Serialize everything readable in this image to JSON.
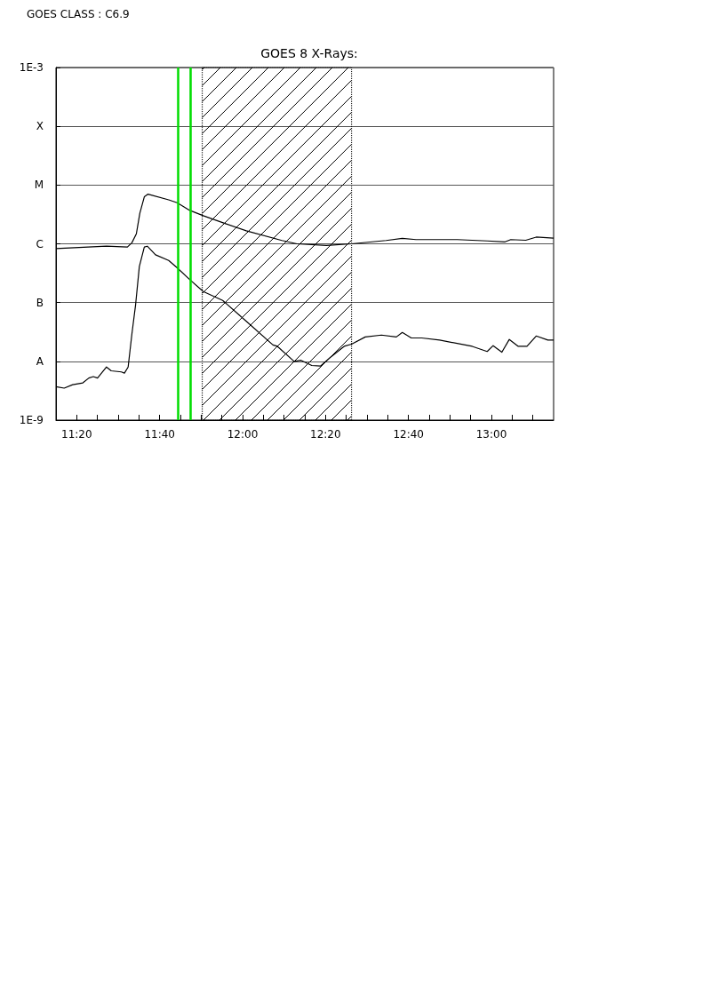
{
  "chart_data": {
    "type": "line",
    "title": "GOES 8 X-Rays:",
    "annotations": [
      "GOES CLASS : C6.9"
    ],
    "xlim": [
      11.25,
      13.25
    ],
    "xticks": [
      {
        "value": 11.3333,
        "label": "11:20"
      },
      {
        "value": 11.4167,
        "label": null
      },
      {
        "value": 11.5,
        "label": null
      },
      {
        "value": 11.5833,
        "label": null
      },
      {
        "value": 11.6667,
        "label": "11:40"
      },
      {
        "value": 11.75,
        "label": null
      },
      {
        "value": 11.8333,
        "label": null
      },
      {
        "value": 11.9167,
        "label": null
      },
      {
        "value": 12,
        "label": "12:00"
      },
      {
        "value": 12.0833,
        "label": null
      },
      {
        "value": 12.1667,
        "label": null
      },
      {
        "value": 12.25,
        "label": null
      },
      {
        "value": 12.3333,
        "label": "12:20"
      },
      {
        "value": 12.4167,
        "label": null
      },
      {
        "value": 12.5,
        "label": null
      },
      {
        "value": 12.5833,
        "label": null
      },
      {
        "value": 12.6667,
        "label": "12:40"
      },
      {
        "value": 12.75,
        "label": null
      },
      {
        "value": 12.8333,
        "label": null
      },
      {
        "value": 12.9167,
        "label": null
      },
      {
        "value": 13,
        "label": "13:00"
      },
      {
        "value": 13.0833,
        "label": null
      },
      {
        "value": 13.1667,
        "label": null
      }
    ],
    "ylim": [
      1e-09,
      0.001
    ],
    "yticks": [
      {
        "value": 1e-09,
        "label": "1E-9"
      },
      {
        "value": 1e-08,
        "label": "A"
      },
      {
        "value": 1e-07,
        "label": "B"
      },
      {
        "value": 1e-06,
        "label": "C"
      },
      {
        "value": 1e-05,
        "label": "M"
      },
      {
        "value": 0.0001,
        "label": "X"
      },
      {
        "value": 0.001,
        "label": "1E-3"
      }
    ],
    "log": "y",
    "grid": "y",
    "marker": "none",
    "line_style": "solid",
    "ref_lines": [
      {
        "axis": "x",
        "value": 11.737,
        "label": null,
        "color": "#00dd00"
      },
      {
        "axis": "x",
        "value": 11.787,
        "label": null,
        "color": "#00dd00"
      }
    ],
    "bands": [
      {
        "axis": "x",
        "from": 11.838,
        "to": 12.438,
        "label": null,
        "color": "#000000"
      }
    ],
    "series": [
      {
        "color": "#000000",
        "x": [
          11.25,
          11.453,
          11.537,
          11.555,
          11.573,
          11.587,
          11.605,
          11.62,
          11.703,
          11.737,
          11.788,
          11.842,
          11.932,
          12.015,
          12.158,
          12.218,
          12.337,
          12.438,
          12.577,
          12.642,
          12.697,
          12.863,
          12.983,
          13.055,
          13.078,
          13.138,
          13.18,
          13.25
        ],
        "values": [
          8.3e-07,
          9.1e-07,
          8.8e-07,
          1.04e-06,
          1.48e-06,
          3.3e-06,
          6.3e-06,
          7e-06,
          5.6e-06,
          5e-06,
          3.7e-06,
          3e-06,
          2.2e-06,
          1.66e-06,
          1.14e-06,
          1e-06,
          9.4e-07,
          1e-06,
          1.14e-06,
          1.24e-06,
          1.18e-06,
          1.18e-06,
          1.12e-06,
          1.08e-06,
          1.18e-06,
          1.15e-06,
          1.3e-06,
          1.25e-06
        ]
      },
      {
        "color": "#000000",
        "x": [
          11.25,
          11.283,
          11.317,
          11.358,
          11.382,
          11.4,
          11.417,
          11.453,
          11.472,
          11.513,
          11.525,
          11.54,
          11.555,
          11.57,
          11.585,
          11.605,
          11.617,
          11.65,
          11.703,
          11.737,
          11.788,
          11.842,
          11.92,
          12.015,
          12.122,
          12.14,
          12.207,
          12.235,
          12.278,
          12.313,
          12.35,
          12.408,
          12.438,
          12.493,
          12.558,
          12.618,
          12.642,
          12.678,
          12.72,
          12.792,
          12.923,
          12.983,
          13.007,
          13.042,
          13.072,
          13.108,
          13.143,
          13.18,
          13.227,
          13.25
        ],
        "values": [
          3.7e-09,
          3.5e-09,
          4e-09,
          4.3e-09,
          5.2e-09,
          5.5e-09,
          5.2e-09,
          8e-09,
          6.9e-09,
          6.6e-09,
          6.3e-09,
          8e-09,
          2.9e-08,
          9.2e-08,
          4.1e-07,
          8.8e-07,
          9.1e-07,
          6.5e-07,
          5.2e-07,
          3.9e-07,
          2.45e-07,
          1.54e-07,
          1.09e-07,
          4.8e-08,
          1.9e-08,
          1.8e-08,
          1e-08,
          1.04e-08,
          8.5e-09,
          8.3e-09,
          1.14e-08,
          1.8e-08,
          1.96e-08,
          2.6e-08,
          2.8e-08,
          2.6e-08,
          3.1e-08,
          2.5e-08,
          2.5e-08,
          2.3e-08,
          1.8e-08,
          1.47e-08,
          1.85e-08,
          1.43e-08,
          2.36e-08,
          1.8e-08,
          1.8e-08,
          2.7e-08,
          2.3e-08,
          2.3e-08
        ]
      }
    ]
  }
}
